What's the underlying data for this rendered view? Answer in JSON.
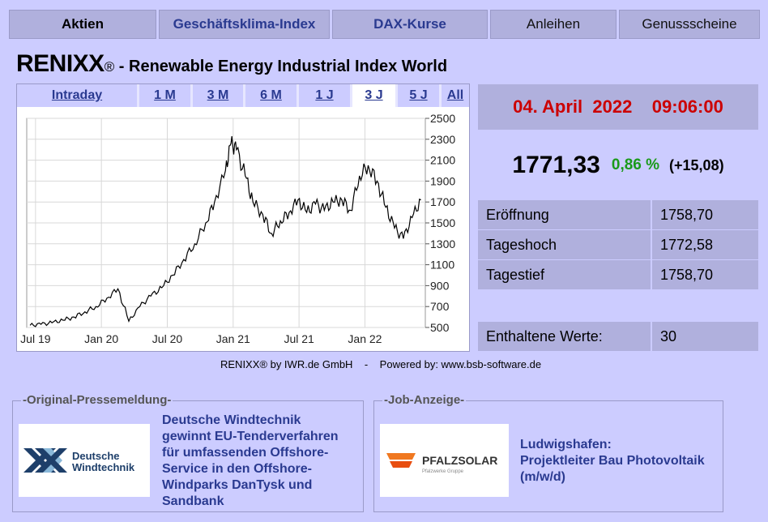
{
  "tabs": [
    {
      "label": "Aktien"
    },
    {
      "label": "Geschäftsklima-Index"
    },
    {
      "label": "DAX-Kurse"
    },
    {
      "label": "Anleihen"
    },
    {
      "label": "Genussscheine"
    }
  ],
  "title": {
    "name": "RENIXX",
    "reg": "®",
    "subtitle": " - Renewable Energy Industrial Index World"
  },
  "ranges": [
    {
      "label": "Intraday"
    },
    {
      "label": "1 M"
    },
    {
      "label": "3 M"
    },
    {
      "label": "6 M"
    },
    {
      "label": "1 J"
    },
    {
      "label": "3 J"
    },
    {
      "label": "5 J"
    },
    {
      "label": "All"
    }
  ],
  "quote": {
    "date": "04. April  2022",
    "time": "09:06:00",
    "price": "1771,33",
    "change_pct": "0,86 %",
    "change_abs": "(+15,08)"
  },
  "stats": [
    {
      "label": "Eröffnung",
      "value": "1758,70"
    },
    {
      "label": "Tageshoch",
      "value": "1772,58"
    },
    {
      "label": "Tagestief",
      "value": "1758,70"
    },
    {
      "label": "Enthaltene Werte:",
      "value": "30"
    }
  ],
  "credit": "RENIXX® by IWR.de GmbH    -    Powered by: www.bsb-software.de",
  "press": {
    "legend": "-Original-Pressemeldung-",
    "logo_text": [
      "Deutsche",
      "Windtechnik"
    ],
    "headline": [
      "Deutsche Windtechnik",
      "gewinnt EU-Tenderverfahren",
      "für umfassenden Offshore-",
      "Service in den Offshore-",
      "Windparks DanTysk und",
      "Sandbank"
    ]
  },
  "job": {
    "legend": "-Job-Anzeige-",
    "logo_text": "PFALZSOLAR",
    "logo_sub": "Pfalzwerke Gruppe",
    "headline": [
      "Ludwigshafen:",
      "Projektleiter Bau Photovoltaik",
      "(m/w/d)"
    ]
  },
  "colors": {
    "accent": "#2a3a90",
    "date": "#cc0000",
    "positive": "#1a9a1a",
    "panel": "#b0b0dd",
    "bg": "#ccccff"
  },
  "chart_data": {
    "type": "line",
    "title": "",
    "xlabel": "",
    "ylabel": "",
    "y_ticks": [
      500,
      700,
      900,
      1100,
      1300,
      1500,
      1700,
      1900,
      2100,
      2300,
      2500
    ],
    "x_ticks": [
      {
        "label": "Jul 19",
        "t": 0.5
      },
      {
        "label": "Jan 20",
        "t": 6.5
      },
      {
        "label": "Jul 20",
        "t": 12.5
      },
      {
        "label": "Jan 21",
        "t": 18.5
      },
      {
        "label": "Jul 21",
        "t": 24.5
      },
      {
        "label": "Jan 22",
        "t": 30.5
      }
    ],
    "ylim": [
      500,
      2500
    ],
    "xlim": [
      -0.3,
      36
    ],
    "grid": true,
    "series": [
      {
        "t": [
          0,
          1,
          2,
          3,
          4,
          5,
          6,
          7,
          8,
          9,
          10,
          11,
          12,
          13,
          14,
          15,
          16,
          16.8,
          17.8,
          18.3,
          18.8,
          19.6,
          20.3,
          21.2,
          22,
          22.8,
          23.6,
          24.4,
          25.2,
          26,
          26.8,
          27.6,
          28.4,
          29.2,
          30,
          30.8,
          31.6,
          32.4,
          33.2,
          34,
          34.8,
          35.6
        ],
        "values": [
          520,
          530,
          545,
          570,
          600,
          650,
          700,
          780,
          870,
          560,
          700,
          800,
          880,
          1000,
          1150,
          1300,
          1500,
          1700,
          2000,
          2260,
          2200,
          1950,
          1700,
          1580,
          1400,
          1520,
          1600,
          1720,
          1600,
          1680,
          1620,
          1700,
          1720,
          1620,
          1950,
          2050,
          1900,
          1650,
          1450,
          1350,
          1550,
          1720
        ]
      }
    ]
  }
}
